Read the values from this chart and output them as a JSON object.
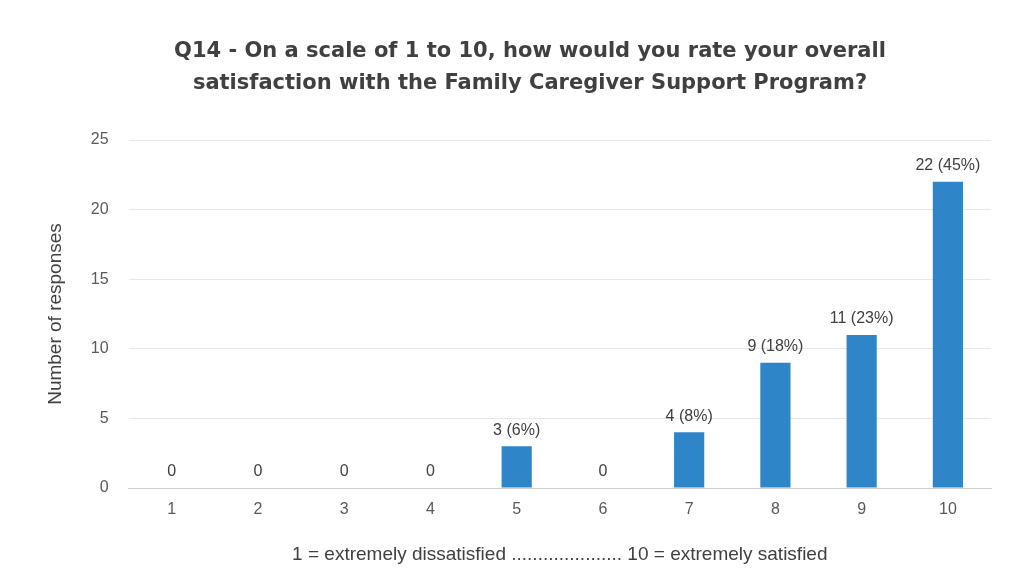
{
  "chart_data": {
    "type": "bar",
    "title": "Q14 - On a scale of 1 to 10, how would you rate your overall satisfaction with the Family Caregiver Support Program?",
    "categories": [
      "1",
      "2",
      "3",
      "4",
      "5",
      "6",
      "7",
      "8",
      "9",
      "10"
    ],
    "values": [
      0,
      0,
      0,
      0,
      3,
      0,
      4,
      9,
      11,
      22
    ],
    "value_labels": [
      "0",
      "0",
      "0",
      "0",
      "3 (6%)",
      "0",
      "4 (8%)",
      "9 (18%)",
      "11 (23%)",
      "22 (45%)"
    ],
    "color": "#2e86c8",
    "xlabel": "1 = extremely dissatisfied ..................... 10 = extremely satisfied",
    "ylabel": "Number of responses",
    "ylim": [
      0,
      25
    ],
    "yticks": [
      0,
      5,
      10,
      15,
      20,
      25
    ],
    "grid": "y",
    "legend": false
  }
}
